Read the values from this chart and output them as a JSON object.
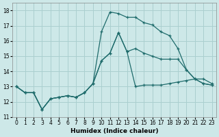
{
  "xlabel": "Humidex (Indice chaleur)",
  "xlim_min": -0.5,
  "xlim_max": 23.5,
  "ylim_min": 11,
  "ylim_max": 18.5,
  "yticks": [
    11,
    12,
    13,
    14,
    15,
    16,
    17,
    18
  ],
  "xticks": [
    0,
    1,
    2,
    3,
    4,
    5,
    6,
    7,
    8,
    9,
    10,
    11,
    12,
    13,
    14,
    15,
    16,
    17,
    18,
    19,
    20,
    21,
    22,
    23
  ],
  "bg_color": "#cde8e8",
  "line_color": "#1e6b6b",
  "grid_color": "#aacfcf",
  "line_top_x": [
    0,
    1,
    2,
    3,
    4,
    5,
    6,
    7,
    8,
    9,
    10,
    11,
    12,
    13,
    14,
    15,
    16,
    17,
    18,
    19,
    20,
    21,
    22,
    23
  ],
  "line_top_y": [
    13.0,
    12.6,
    12.6,
    11.5,
    12.2,
    12.3,
    12.4,
    12.3,
    12.6,
    13.2,
    16.6,
    17.9,
    17.8,
    17.55,
    17.55,
    17.2,
    17.05,
    16.6,
    16.35,
    15.5,
    14.1,
    13.5,
    13.2,
    13.1
  ],
  "line_mid_x": [
    0,
    1,
    2,
    3,
    4,
    5,
    6,
    7,
    8,
    9,
    10,
    11,
    12,
    13,
    14,
    15,
    16,
    17,
    18,
    19,
    20,
    21,
    22,
    23
  ],
  "line_mid_y": [
    13.0,
    12.6,
    12.6,
    11.5,
    12.2,
    12.3,
    12.4,
    12.3,
    12.6,
    13.2,
    14.7,
    15.2,
    16.55,
    15.3,
    15.5,
    15.2,
    15.0,
    14.8,
    14.8,
    14.8,
    14.1,
    13.5,
    13.2,
    13.1
  ],
  "line_bot_x": [
    0,
    1,
    2,
    3,
    4,
    5,
    6,
    7,
    8,
    9,
    10,
    11,
    12,
    13,
    14,
    15,
    16,
    17,
    18,
    19,
    20,
    21,
    22,
    23
  ],
  "line_bot_y": [
    13.0,
    12.6,
    12.6,
    11.5,
    12.2,
    12.3,
    12.4,
    12.3,
    12.6,
    13.2,
    14.7,
    15.2,
    16.55,
    15.3,
    13.0,
    13.1,
    13.1,
    13.1,
    13.2,
    13.3,
    13.4,
    13.5,
    13.5,
    13.2
  ],
  "tick_fontsize": 5.5,
  "xlabel_fontsize": 6.5
}
